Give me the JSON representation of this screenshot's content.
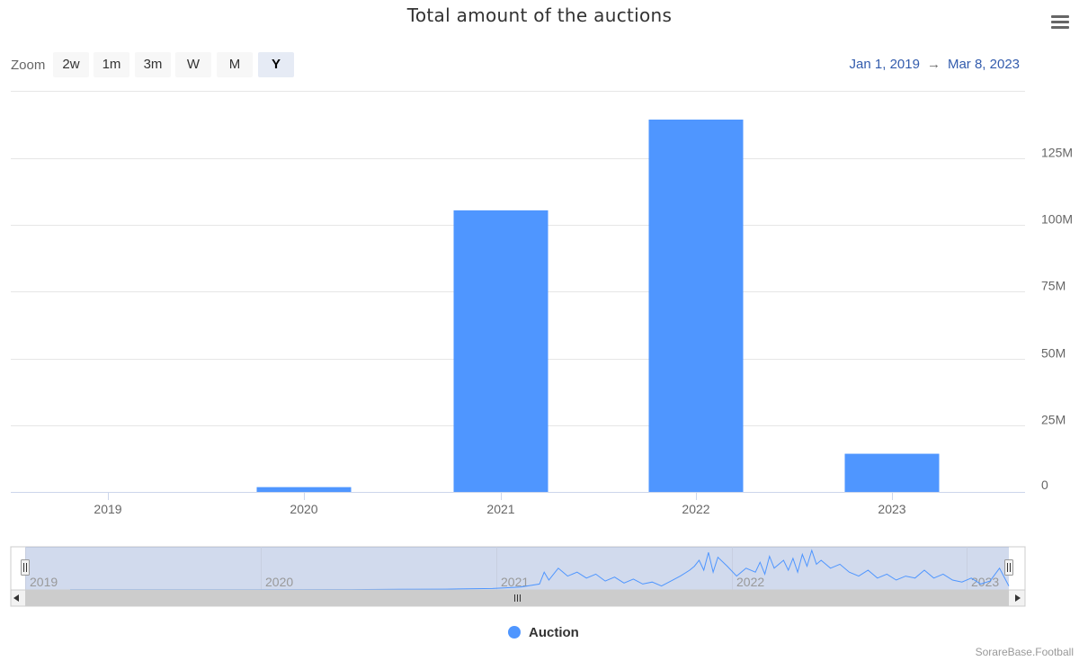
{
  "title": "Total amount of the auctions",
  "menu": {
    "icon": "hamburger-menu-icon"
  },
  "zoom": {
    "label": "Zoom",
    "buttons": [
      {
        "label": "2w",
        "active": false
      },
      {
        "label": "1m",
        "active": false
      },
      {
        "label": "3m",
        "active": false
      },
      {
        "label": "W",
        "active": false
      },
      {
        "label": "M",
        "active": false
      },
      {
        "label": "Y",
        "active": true
      }
    ]
  },
  "date_range": {
    "from": "Jan 1, 2019",
    "arrow": "→",
    "to": "Mar 8, 2023"
  },
  "chart_data": {
    "type": "bar",
    "title": "Total amount of the auctions",
    "categories": [
      "2019",
      "2020",
      "2021",
      "2022",
      "2023"
    ],
    "series": [
      {
        "name": "Auction",
        "values": [
          0,
          1800000,
          105500000,
          139500000,
          14300000
        ],
        "color": "#4f96ff"
      }
    ],
    "yticks": [
      "0",
      "25M",
      "50M",
      "75M",
      "100M",
      "125M"
    ],
    "ylim": [
      0,
      150000000
    ],
    "ytick_step": 25000000,
    "y_axis_side": "right",
    "grid": true,
    "legend_position": "bottom-center"
  },
  "navigator": {
    "labels": [
      "2019",
      "2020",
      "2021",
      "2022",
      "2023"
    ],
    "series_points": [
      [
        0.0,
        0.2
      ],
      [
        0.1,
        0.2
      ],
      [
        0.2,
        0.3
      ],
      [
        0.3,
        0.4
      ],
      [
        0.35,
        0.6
      ],
      [
        0.4,
        0.8
      ],
      [
        0.45,
        1.5
      ],
      [
        0.48,
        3
      ],
      [
        0.5,
        6
      ],
      [
        0.505,
        18
      ],
      [
        0.51,
        10
      ],
      [
        0.52,
        22
      ],
      [
        0.53,
        14
      ],
      [
        0.54,
        18
      ],
      [
        0.55,
        12
      ],
      [
        0.56,
        16
      ],
      [
        0.57,
        9
      ],
      [
        0.58,
        13
      ],
      [
        0.59,
        7
      ],
      [
        0.6,
        11
      ],
      [
        0.61,
        6
      ],
      [
        0.62,
        8
      ],
      [
        0.63,
        4
      ],
      [
        0.64,
        9
      ],
      [
        0.65,
        14
      ],
      [
        0.66,
        20
      ],
      [
        0.665,
        24
      ],
      [
        0.67,
        30
      ],
      [
        0.675,
        20
      ],
      [
        0.68,
        38
      ],
      [
        0.685,
        18
      ],
      [
        0.69,
        33
      ],
      [
        0.7,
        24
      ],
      [
        0.71,
        14
      ],
      [
        0.72,
        22
      ],
      [
        0.73,
        18
      ],
      [
        0.735,
        28
      ],
      [
        0.74,
        16
      ],
      [
        0.745,
        34
      ],
      [
        0.75,
        22
      ],
      [
        0.76,
        30
      ],
      [
        0.765,
        20
      ],
      [
        0.77,
        32
      ],
      [
        0.775,
        18
      ],
      [
        0.78,
        36
      ],
      [
        0.785,
        24
      ],
      [
        0.79,
        40
      ],
      [
        0.795,
        26
      ],
      [
        0.8,
        30
      ],
      [
        0.81,
        22
      ],
      [
        0.82,
        26
      ],
      [
        0.83,
        18
      ],
      [
        0.84,
        14
      ],
      [
        0.85,
        20
      ],
      [
        0.86,
        12
      ],
      [
        0.87,
        16
      ],
      [
        0.88,
        10
      ],
      [
        0.89,
        14
      ],
      [
        0.9,
        12
      ],
      [
        0.91,
        20
      ],
      [
        0.92,
        12
      ],
      [
        0.93,
        16
      ],
      [
        0.94,
        10
      ],
      [
        0.95,
        8
      ],
      [
        0.96,
        12
      ],
      [
        0.97,
        6
      ],
      [
        0.98,
        9
      ],
      [
        0.99,
        22
      ],
      [
        1.0,
        4
      ]
    ],
    "series_max": 40
  },
  "legend": {
    "label": "Auction",
    "color": "#4f96ff"
  },
  "credits": "SorareBase.Football"
}
